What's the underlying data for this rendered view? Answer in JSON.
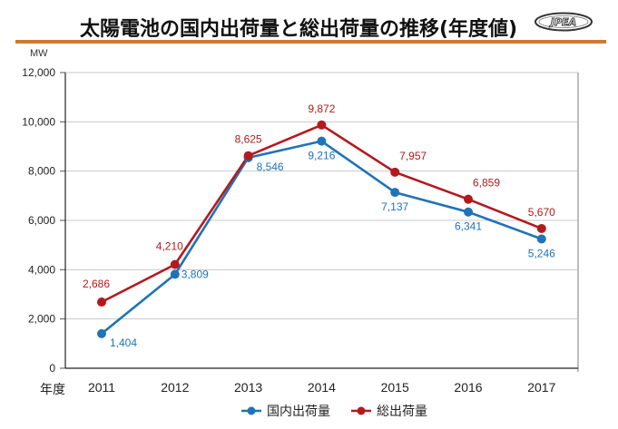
{
  "header": {
    "title": "太陽電池の国内出荷量と総出荷量の推移(年度値)",
    "logo_text": "JPEA",
    "rule_color": "#d4782d"
  },
  "chart_data": {
    "type": "line",
    "title": "太陽電池の国内出荷量と総出荷量の推移(年度値)",
    "ylabel": "MW",
    "xlabel": "年度",
    "ylim": [
      0,
      12000
    ],
    "yticks": [
      0,
      2000,
      4000,
      6000,
      8000,
      10000,
      12000
    ],
    "ytick_labels": [
      "0",
      "2,000",
      "4,000",
      "6,000",
      "8,000",
      "10,000",
      "12,000"
    ],
    "grid": true,
    "categories": [
      "2011",
      "2012",
      "2013",
      "2014",
      "2015",
      "2016",
      "2017"
    ],
    "legend_position": "bottom",
    "series": [
      {
        "name": "国内出荷量",
        "color": "#1f73b7",
        "values": [
          1404,
          3809,
          8546,
          9216,
          7137,
          6341,
          5246
        ],
        "labels": [
          "1,404",
          "3,809",
          "8,546",
          "9,216",
          "7,137",
          "6,341",
          "5,246"
        ],
        "label_placement": [
          "below-right",
          "right",
          "below-right",
          "below",
          "below",
          "below",
          "below"
        ]
      },
      {
        "name": "総出荷量",
        "color": "#b21a1e",
        "values": [
          2686,
          4210,
          8625,
          9872,
          7957,
          6859,
          5670
        ],
        "labels": [
          "2,686",
          "4,210",
          "8,625",
          "9,872",
          "7,957",
          "6,859",
          "5,670"
        ],
        "label_placement": [
          "above-left",
          "above-left",
          "above",
          "above",
          "above-right",
          "above-right",
          "above"
        ]
      }
    ]
  }
}
